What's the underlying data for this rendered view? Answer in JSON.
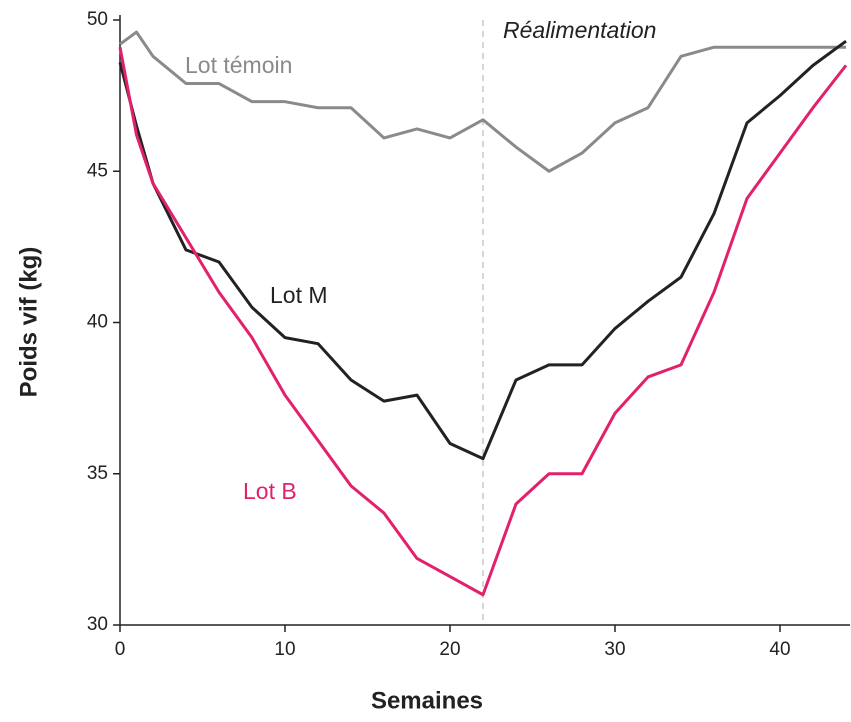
{
  "chart_data": {
    "type": "line",
    "x_label": "Semaines",
    "y_label": "Poids vif (kg)",
    "x": [
      0,
      1,
      2,
      4,
      6,
      8,
      10,
      12,
      14,
      16,
      18,
      20,
      22,
      24,
      26,
      28,
      30,
      32,
      34,
      36,
      38,
      40,
      42,
      44
    ],
    "series": [
      {
        "name": "Lot témoin",
        "color": "#8a8a8a",
        "values": [
          49.2,
          49.6,
          48.8,
          47.9,
          47.9,
          47.3,
          47.3,
          47.1,
          47.1,
          46.1,
          46.4,
          46.1,
          46.7,
          45.8,
          45.0,
          45.6,
          46.6,
          47.1,
          48.8,
          49.1,
          49.1,
          49.1,
          49.1,
          49.1
        ]
      },
      {
        "name": "Lot M",
        "color": "#222222",
        "values": [
          48.6,
          46.5,
          44.6,
          42.4,
          42.0,
          40.5,
          39.5,
          39.3,
          38.1,
          37.4,
          37.6,
          36.0,
          35.5,
          38.1,
          38.6,
          38.6,
          39.8,
          40.7,
          41.5,
          43.6,
          46.6,
          47.5,
          48.5,
          49.3
        ]
      },
      {
        "name": "Lot B",
        "color": "#e2206c",
        "values": [
          49.1,
          46.2,
          44.6,
          42.8,
          41.0,
          39.5,
          37.6,
          36.1,
          34.6,
          33.7,
          32.2,
          31.6,
          31.0,
          34.0,
          35.0,
          35.0,
          37.0,
          38.2,
          38.6,
          41.0,
          44.1,
          45.6,
          47.1,
          48.5
        ]
      }
    ],
    "refline": {
      "x": 22,
      "label": "Réalimentation"
    },
    "xlim": [
      0,
      44
    ],
    "ylim": [
      30,
      50
    ],
    "xticks": [
      0,
      10,
      20,
      30,
      40
    ],
    "yticks": [
      30,
      35,
      40,
      45,
      50
    ]
  }
}
